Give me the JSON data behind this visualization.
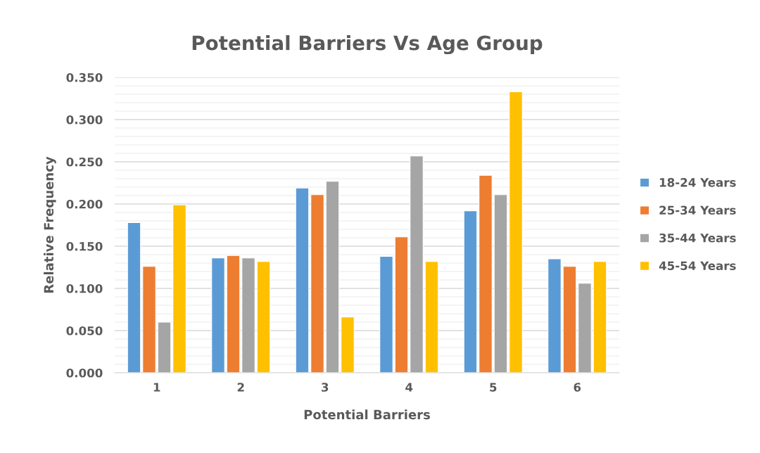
{
  "chart_data": {
    "type": "bar",
    "title": "Potential Barriers Vs Age Group",
    "xlabel": "Potential Barriers",
    "ylabel": "Relative Frequency",
    "categories": [
      "1",
      "2",
      "3",
      "4",
      "5",
      "6"
    ],
    "series": [
      {
        "name": "18-24 Years",
        "color": "#5b9bd5",
        "values": [
          0.178,
          0.136,
          0.219,
          0.138,
          0.192,
          0.135
        ]
      },
      {
        "name": "25-34 Years",
        "color": "#ed7d31",
        "values": [
          0.126,
          0.139,
          0.211,
          0.161,
          0.234,
          0.126
        ]
      },
      {
        "name": "35-44 Years",
        "color": "#a5a5a5",
        "values": [
          0.06,
          0.136,
          0.227,
          0.257,
          0.211,
          0.106
        ]
      },
      {
        "name": "45-54 Years",
        "color": "#ffc000",
        "values": [
          0.199,
          0.132,
          0.066,
          0.132,
          0.333,
          0.132
        ]
      }
    ],
    "ylim": [
      0,
      0.35
    ],
    "yticks": [
      {
        "value": 0,
        "label": "0.000"
      },
      {
        "value": 0.01,
        "label": null
      },
      {
        "value": 0.02,
        "label": null
      },
      {
        "value": 0.03,
        "label": null
      },
      {
        "value": 0.04,
        "label": null
      },
      {
        "value": 0.05,
        "label": "0.050"
      },
      {
        "value": 0.06,
        "label": null
      },
      {
        "value": 0.07,
        "label": null
      },
      {
        "value": 0.08,
        "label": null
      },
      {
        "value": 0.09,
        "label": null
      },
      {
        "value": 0.1,
        "label": "0.100"
      },
      {
        "value": 0.11,
        "label": null
      },
      {
        "value": 0.12,
        "label": null
      },
      {
        "value": 0.13,
        "label": null
      },
      {
        "value": 0.14,
        "label": null
      },
      {
        "value": 0.15,
        "label": "0.150"
      },
      {
        "value": 0.16,
        "label": null
      },
      {
        "value": 0.17,
        "label": null
      },
      {
        "value": 0.18,
        "label": null
      },
      {
        "value": 0.19,
        "label": null
      },
      {
        "value": 0.2,
        "label": "0.200"
      },
      {
        "value": 0.21,
        "label": null
      },
      {
        "value": 0.22,
        "label": null
      },
      {
        "value": 0.23,
        "label": null
      },
      {
        "value": 0.24,
        "label": null
      },
      {
        "value": 0.25,
        "label": "0.250"
      },
      {
        "value": 0.26,
        "label": null
      },
      {
        "value": 0.27,
        "label": null
      },
      {
        "value": 0.28,
        "label": null
      },
      {
        "value": 0.29,
        "label": null
      },
      {
        "value": 0.3,
        "label": "0.300"
      },
      {
        "value": 0.31,
        "label": null
      },
      {
        "value": 0.32,
        "label": null
      },
      {
        "value": 0.33,
        "label": null
      },
      {
        "value": 0.34,
        "label": null
      },
      {
        "value": 0.35,
        "label": "0.350"
      }
    ],
    "grid": "y",
    "legend": "right"
  }
}
